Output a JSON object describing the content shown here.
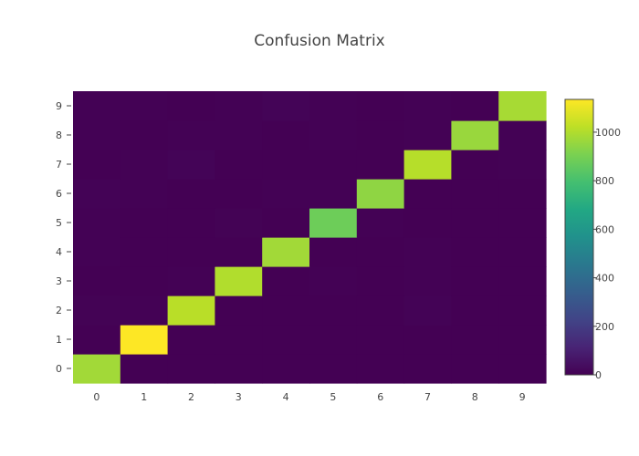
{
  "chart_data": {
    "type": "heatmap",
    "title": "Confusion Matrix",
    "xlabel": "",
    "ylabel": "",
    "x_categories": [
      "0",
      "1",
      "2",
      "3",
      "4",
      "5",
      "6",
      "7",
      "8",
      "9"
    ],
    "y_categories": [
      "0",
      "1",
      "2",
      "3",
      "4",
      "5",
      "6",
      "7",
      "8",
      "9"
    ],
    "colorscale": "Viridis",
    "zlim": [
      0,
      1135
    ],
    "colorbar_ticks": [
      0,
      200,
      400,
      600,
      800,
      1000
    ],
    "z": [
      [
        975,
        0,
        1,
        0,
        0,
        1,
        1,
        1,
        1,
        0
      ],
      [
        0,
        1135,
        0,
        0,
        0,
        0,
        0,
        0,
        0,
        0
      ],
      [
        5,
        3,
        1015,
        1,
        1,
        0,
        1,
        6,
        0,
        0
      ],
      [
        0,
        0,
        2,
        1002,
        0,
        3,
        0,
        3,
        0,
        0
      ],
      [
        2,
        0,
        1,
        0,
        975,
        0,
        1,
        2,
        0,
        1
      ],
      [
        2,
        0,
        0,
        5,
        0,
        880,
        3,
        0,
        1,
        1
      ],
      [
        6,
        2,
        1,
        0,
        2,
        4,
        944,
        0,
        0,
        0
      ],
      [
        1,
        4,
        9,
        1,
        0,
        0,
        0,
        1010,
        0,
        3
      ],
      [
        3,
        0,
        2,
        2,
        1,
        2,
        0,
        2,
        960,
        2
      ],
      [
        2,
        3,
        0,
        3,
        10,
        3,
        0,
        4,
        0,
        984
      ]
    ]
  }
}
